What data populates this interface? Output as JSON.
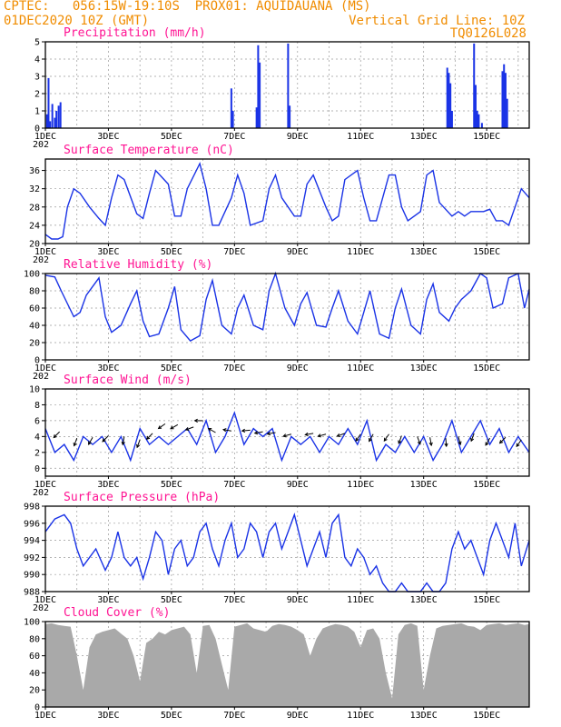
{
  "header": {
    "line1_left": "CPTEC:",
    "location": "056:15W-19:10S",
    "station": "PROX01: AQUIDAUANA (MS)",
    "run": "01DEC2020 10Z (GMT)",
    "gridline_note": "Vertical Grid Line: 10Z",
    "code": "TQ0126L028"
  },
  "x_axis": {
    "labels": [
      "1DEC",
      "3DEC",
      "5DEC",
      "7DEC",
      "9DEC",
      "11DEC",
      "13DEC",
      "15DEC"
    ],
    "partial_label": "202",
    "start": 0,
    "end": 15.35
  },
  "chart_data": [
    {
      "id": "precip",
      "type": "bar",
      "title": "Precipitation (mm/h)",
      "ylim": [
        0,
        5
      ],
      "yticks": [
        0,
        1,
        2,
        3,
        4,
        5
      ],
      "color": "#1a33e6",
      "x": [
        0.05,
        0.1,
        0.15,
        0.22,
        0.3,
        0.35,
        0.42,
        0.48,
        5.9,
        5.95,
        6.7,
        6.75,
        6.8,
        7.7,
        7.75,
        12.75,
        12.8,
        12.85,
        12.9,
        13.6,
        13.65,
        13.7,
        13.75,
        13.85,
        14.5,
        14.55,
        14.6,
        14.65
      ],
      "values": [
        0.8,
        2.9,
        0.4,
        1.4,
        0.6,
        1.0,
        1.3,
        1.5,
        2.3,
        1.0,
        1.2,
        4.8,
        3.8,
        4.9,
        1.3,
        3.5,
        3.2,
        2.6,
        1.0,
        4.9,
        2.5,
        1.0,
        0.8,
        0.3,
        3.3,
        3.7,
        3.2,
        1.7
      ]
    },
    {
      "id": "temp",
      "type": "line",
      "title": "Surface Temperature (nC)",
      "ylim": [
        20,
        38.5
      ],
      "yticks": [
        20,
        24,
        28,
        32,
        36
      ],
      "color": "#1a33e6",
      "x": [
        0,
        0.2,
        0.4,
        0.55,
        0.7,
        0.9,
        1.1,
        1.4,
        1.7,
        1.9,
        2.1,
        2.3,
        2.5,
        2.9,
        3.1,
        3.3,
        3.5,
        3.9,
        4.1,
        4.3,
        4.5,
        4.9,
        5.1,
        5.3,
        5.5,
        5.9,
        6.1,
        6.3,
        6.5,
        6.9,
        7.1,
        7.3,
        7.5,
        7.9,
        8.1,
        8.3,
        8.5,
        8.9,
        9.1,
        9.3,
        9.5,
        9.9,
        10.1,
        10.3,
        10.5,
        10.9,
        11.1,
        11.3,
        11.5,
        11.9,
        12.1,
        12.3,
        12.5,
        12.9,
        13.1,
        13.3,
        13.5,
        13.9,
        14.1,
        14.3,
        14.5,
        14.7,
        14.9,
        15.1,
        15.35
      ],
      "values": [
        22,
        21,
        21,
        21.5,
        28,
        32,
        31,
        28,
        25.5,
        24,
        30,
        35,
        34,
        26.5,
        25.5,
        31,
        36,
        33,
        26,
        26,
        32,
        37.5,
        32,
        24,
        24,
        30,
        35,
        31,
        24,
        25,
        32,
        35,
        30,
        26,
        26,
        33,
        35,
        28,
        25,
        26,
        34,
        36,
        30,
        25,
        25,
        35,
        35,
        28,
        25,
        27,
        35,
        36,
        29,
        26,
        27,
        26,
        27,
        27,
        27.5,
        25,
        25,
        24,
        28,
        32,
        30
      ]
    },
    {
      "id": "rh",
      "type": "line",
      "title": "Relative Humidity (%)",
      "ylim": [
        0,
        100
      ],
      "yticks": [
        0,
        20,
        40,
        60,
        80,
        100
      ],
      "color": "#1a33e6",
      "x": [
        0,
        0.3,
        0.5,
        0.9,
        1.1,
        1.3,
        1.7,
        1.9,
        2.1,
        2.4,
        2.7,
        2.9,
        3.1,
        3.3,
        3.6,
        3.9,
        4.1,
        4.3,
        4.6,
        4.9,
        5.1,
        5.3,
        5.6,
        5.9,
        6.1,
        6.3,
        6.6,
        6.9,
        7.1,
        7.3,
        7.6,
        7.9,
        8.1,
        8.3,
        8.6,
        8.9,
        9.1,
        9.3,
        9.6,
        9.9,
        10.1,
        10.3,
        10.6,
        10.9,
        11.1,
        11.3,
        11.6,
        11.9,
        12.1,
        12.3,
        12.5,
        12.8,
        13,
        13.2,
        13.5,
        13.8,
        14,
        14.2,
        14.5,
        14.7,
        15,
        15.2,
        15.35
      ],
      "values": [
        98,
        96,
        80,
        50,
        55,
        75,
        95,
        50,
        32,
        40,
        65,
        80,
        45,
        27,
        30,
        60,
        85,
        35,
        22,
        28,
        70,
        92,
        40,
        30,
        60,
        75,
        40,
        35,
        80,
        100,
        60,
        40,
        65,
        78,
        40,
        38,
        60,
        80,
        45,
        30,
        55,
        80,
        30,
        25,
        60,
        82,
        40,
        30,
        70,
        88,
        55,
        45,
        60,
        70,
        80,
        100,
        95,
        60,
        65,
        95,
        100,
        60,
        82
      ]
    },
    {
      "id": "wind",
      "type": "line",
      "title": "Surface Wind (m/s)",
      "ylim": [
        -1,
        10
      ],
      "yticks": [
        0,
        2,
        4,
        6,
        8,
        10
      ],
      "color": "#1a33e6",
      "x": [
        0,
        0.3,
        0.6,
        0.9,
        1.2,
        1.5,
        1.8,
        2.1,
        2.4,
        2.7,
        3,
        3.3,
        3.6,
        3.9,
        4.2,
        4.5,
        4.8,
        5.1,
        5.4,
        5.7,
        6,
        6.3,
        6.6,
        6.9,
        7.2,
        7.5,
        7.8,
        8.1,
        8.4,
        8.7,
        9,
        9.3,
        9.6,
        9.9,
        10.2,
        10.5,
        10.8,
        11.1,
        11.4,
        11.7,
        12,
        12.3,
        12.6,
        12.9,
        13.2,
        13.5,
        13.8,
        14.1,
        14.4,
        14.7,
        15,
        15.35
      ],
      "values": [
        5,
        2,
        3,
        1,
        4,
        3,
        4,
        2,
        4,
        1,
        5,
        3,
        4,
        3,
        4,
        5,
        3,
        6,
        2,
        4,
        7,
        3,
        5,
        4,
        5,
        1,
        4,
        3,
        4,
        2,
        4,
        3,
        5,
        3,
        6,
        1,
        3,
        2,
        4,
        2,
        4,
        1,
        3,
        6,
        2,
        4,
        6,
        3,
        5,
        2,
        4,
        2
      ],
      "arrows": [
        {
          "x": 0.45,
          "y": 4.6,
          "dir": 225
        },
        {
          "x": 1.0,
          "y": 3.8,
          "dir": 200
        },
        {
          "x": 1.5,
          "y": 3.9,
          "dir": 210
        },
        {
          "x": 2.0,
          "y": 4.1,
          "dir": 225
        },
        {
          "x": 2.5,
          "y": 4.0,
          "dir": 190
        },
        {
          "x": 3.0,
          "y": 3.6,
          "dir": 200
        },
        {
          "x": 3.4,
          "y": 4.4,
          "dir": 225
        },
        {
          "x": 3.8,
          "y": 5.6,
          "dir": 235
        },
        {
          "x": 4.2,
          "y": 5.5,
          "dir": 240
        },
        {
          "x": 4.7,
          "y": 5.2,
          "dir": 250
        },
        {
          "x": 5.0,
          "y": 6.0,
          "dir": 270
        },
        {
          "x": 5.4,
          "y": 4.5,
          "dir": 300
        },
        {
          "x": 5.9,
          "y": 4.7,
          "dir": 280
        },
        {
          "x": 6.5,
          "y": 4.8,
          "dir": 265
        },
        {
          "x": 6.9,
          "y": 4.6,
          "dir": 260
        },
        {
          "x": 7.3,
          "y": 4.5,
          "dir": 260
        },
        {
          "x": 7.8,
          "y": 4.3,
          "dir": 255
        },
        {
          "x": 8.5,
          "y": 4.4,
          "dir": 260
        },
        {
          "x": 8.9,
          "y": 4.3,
          "dir": 255
        },
        {
          "x": 9.5,
          "y": 4.4,
          "dir": 250
        },
        {
          "x": 10.0,
          "y": 4.3,
          "dir": 215
        },
        {
          "x": 10.4,
          "y": 4.3,
          "dir": 210
        },
        {
          "x": 10.9,
          "y": 4.3,
          "dir": 215
        },
        {
          "x": 11.3,
          "y": 4.1,
          "dir": 200
        },
        {
          "x": 11.8,
          "y": 4.0,
          "dir": 160
        },
        {
          "x": 12.2,
          "y": 3.9,
          "dir": 170
        },
        {
          "x": 12.7,
          "y": 3.8,
          "dir": 175
        },
        {
          "x": 13.1,
          "y": 4.0,
          "dir": 165
        },
        {
          "x": 13.6,
          "y": 4.4,
          "dir": 200
        },
        {
          "x": 14.1,
          "y": 3.8,
          "dir": 210
        },
        {
          "x": 14.6,
          "y": 3.9,
          "dir": 225
        },
        {
          "x": 15.1,
          "y": 3.6,
          "dir": 215
        }
      ]
    },
    {
      "id": "pressure",
      "type": "line",
      "title": "Surface Pressure (hPa)",
      "ylim": [
        988,
        998
      ],
      "yticks": [
        988,
        990,
        992,
        994,
        996,
        998
      ],
      "color": "#1a33e6",
      "x": [
        0,
        0.3,
        0.6,
        0.8,
        1.0,
        1.2,
        1.4,
        1.6,
        1.9,
        2.1,
        2.3,
        2.5,
        2.7,
        2.9,
        3.1,
        3.3,
        3.5,
        3.7,
        3.9,
        4.1,
        4.3,
        4.5,
        4.7,
        4.9,
        5.1,
        5.3,
        5.5,
        5.7,
        5.9,
        6.1,
        6.3,
        6.5,
        6.7,
        6.9,
        7.1,
        7.3,
        7.5,
        7.7,
        7.9,
        8.1,
        8.3,
        8.5,
        8.7,
        8.9,
        9.1,
        9.3,
        9.5,
        9.7,
        9.9,
        10.1,
        10.3,
        10.5,
        10.7,
        10.9,
        11.1,
        11.3,
        11.5,
        11.7,
        11.9,
        12.1,
        12.3,
        12.5,
        12.7,
        12.9,
        13.1,
        13.3,
        13.5,
        13.7,
        13.9,
        14.1,
        14.3,
        14.5,
        14.7,
        14.9,
        15.1,
        15.35
      ],
      "values": [
        995,
        996.5,
        997,
        996,
        993,
        991,
        992,
        993,
        990.5,
        992,
        995,
        992,
        991,
        992,
        989.5,
        992,
        995,
        994,
        990,
        993,
        994,
        991,
        992,
        995,
        996,
        993,
        991,
        994,
        996,
        992,
        993,
        996,
        995,
        992,
        995,
        996,
        993,
        995,
        997,
        994,
        991,
        993,
        995,
        992,
        996,
        997,
        992,
        991,
        993,
        992,
        990,
        991,
        989,
        988,
        988,
        989,
        987,
        988,
        988,
        989,
        988,
        987.5,
        989,
        993,
        995,
        993,
        994,
        992,
        990,
        994,
        996,
        994,
        992,
        996,
        991,
        994
      ]
    },
    {
      "id": "cloud",
      "type": "area",
      "title": "Cloud Cover (%)",
      "ylim": [
        0,
        100
      ],
      "yticks": [
        0,
        20,
        40,
        60,
        80,
        100
      ],
      "color": "#a9a9a9",
      "x": [
        0,
        0.2,
        0.4,
        0.6,
        0.8,
        1.0,
        1.2,
        1.4,
        1.6,
        1.8,
        2.0,
        2.2,
        2.4,
        2.6,
        2.8,
        3.0,
        3.2,
        3.4,
        3.6,
        3.8,
        4.0,
        4.2,
        4.4,
        4.6,
        4.8,
        5.0,
        5.2,
        5.4,
        5.6,
        5.8,
        6.0,
        6.2,
        6.4,
        6.6,
        6.8,
        7.0,
        7.2,
        7.4,
        7.6,
        7.8,
        8.0,
        8.2,
        8.4,
        8.6,
        8.8,
        9.0,
        9.2,
        9.4,
        9.6,
        9.8,
        10.0,
        10.2,
        10.4,
        10.6,
        10.8,
        11.0,
        11.2,
        11.4,
        11.6,
        11.8,
        12.0,
        12.2,
        12.4,
        12.6,
        12.8,
        13.0,
        13.2,
        13.4,
        13.6,
        13.8,
        14.0,
        14.2,
        14.4,
        14.6,
        14.8,
        15.0,
        15.2,
        15.35
      ],
      "values": [
        97,
        98,
        96,
        95,
        94,
        60,
        20,
        70,
        85,
        88,
        90,
        92,
        86,
        80,
        60,
        30,
        75,
        80,
        88,
        85,
        90,
        92,
        94,
        85,
        40,
        95,
        96,
        80,
        50,
        20,
        94,
        96,
        98,
        92,
        90,
        88,
        95,
        97,
        96,
        94,
        90,
        85,
        60,
        80,
        92,
        95,
        97,
        96,
        94,
        88,
        70,
        90,
        92,
        80,
        40,
        10,
        85,
        96,
        98,
        95,
        20,
        60,
        92,
        95,
        96,
        97,
        98,
        95,
        94,
        90,
        96,
        97,
        98,
        96,
        97,
        98,
        96,
        97
      ]
    }
  ]
}
